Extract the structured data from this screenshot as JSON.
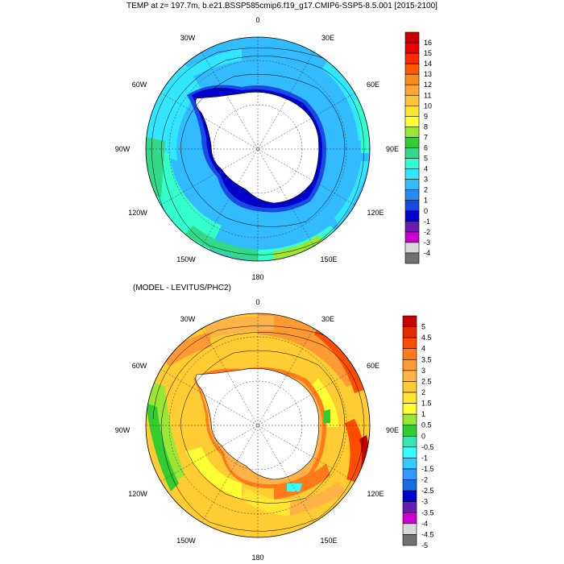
{
  "figure": {
    "title": "TEMP at z= 197.7m, b.e21.BSSP585cmip6.f19_g17.CMIP6-SSP5-8.5.001 [2015-2100]",
    "panels": [
      {
        "id": "model",
        "title": "",
        "longitude_labels": [
          "0",
          "30E",
          "60E",
          "90E",
          "120E",
          "150E",
          "180",
          "150W",
          "120W",
          "90W",
          "60W",
          "30W"
        ],
        "colorbar": {
          "labels": [
            "16",
            "15",
            "14",
            "13",
            "12",
            "11",
            "10",
            "9",
            "8",
            "7",
            "6",
            "5",
            "4",
            "3",
            "2",
            "1",
            "0",
            "-1",
            "-2",
            "-3",
            "-4"
          ],
          "colors": [
            "#c80000",
            "#e60000",
            "#ff2a00",
            "#ff5a00",
            "#ff8a1a",
            "#ffa533",
            "#ffc533",
            "#ffe433",
            "#ffff33",
            "#99e633",
            "#33cc33",
            "#33d98a",
            "#33ffcc",
            "#33e6ff",
            "#33bbff",
            "#2a8af0",
            "#1a4ae6",
            "#0000cc",
            "#6a1ab3",
            "#cc00cc",
            "#d9d9d9",
            "#707070"
          ]
        }
      },
      {
        "id": "difference",
        "title": "(MODEL - LEVITUS/PHC2)",
        "longitude_labels": [
          "0",
          "30E",
          "60E",
          "90E",
          "120E",
          "150E",
          "180",
          "150W",
          "120W",
          "90W",
          "60W",
          "30W"
        ],
        "colorbar": {
          "labels": [
            "5",
            "4.5",
            "4",
            "3.5",
            "3",
            "2.5",
            "2",
            "1.5",
            "1",
            "0.5",
            "0",
            "-0.5",
            "-1",
            "-1.5",
            "-2",
            "-2.5",
            "-3",
            "-3.5",
            "-4",
            "-4.5",
            "-5"
          ],
          "colors": [
            "#c80000",
            "#e62a00",
            "#ff4d00",
            "#ff7a1a",
            "#ff9933",
            "#ffb347",
            "#ffcc33",
            "#ffe633",
            "#ffff33",
            "#99e633",
            "#33cc33",
            "#33e6b3",
            "#33ffff",
            "#33ccff",
            "#3399ff",
            "#1a6ae6",
            "#0000cc",
            "#6a1ab3",
            "#cc00cc",
            "#d9d9d9",
            "#707070"
          ]
        }
      }
    ]
  }
}
